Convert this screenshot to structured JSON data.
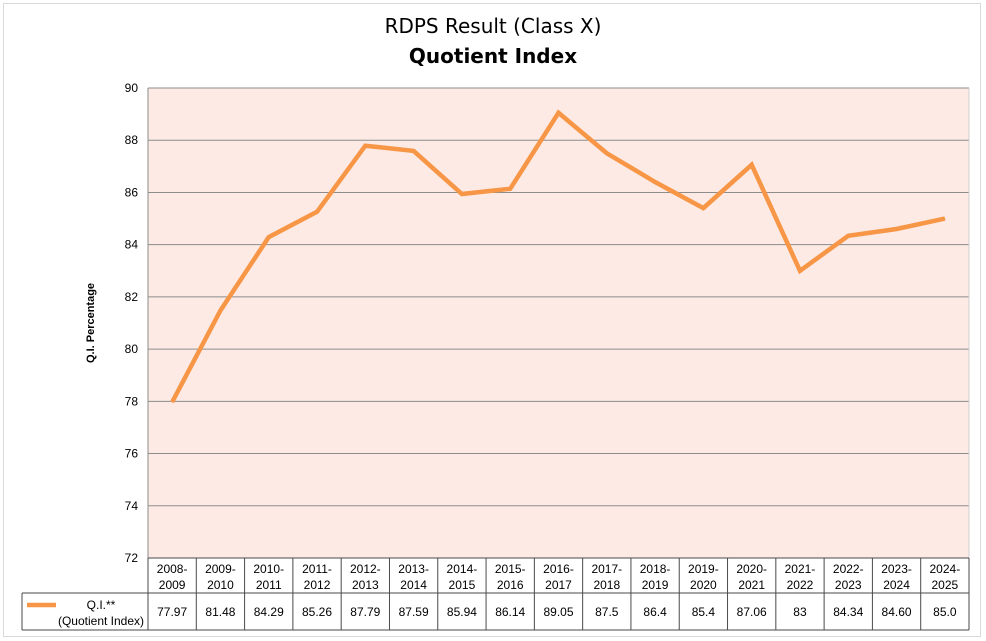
{
  "chart_data": {
    "type": "line",
    "title": "RDPS Result (Class X)",
    "subtitle": "Quotient Index",
    "ylabel": "Q.I. Percentage",
    "ylim": [
      72,
      90
    ],
    "yticks": [
      "72",
      "74",
      "76",
      "78",
      "80",
      "82",
      "84",
      "86",
      "88",
      "90"
    ],
    "categories": [
      [
        "2008-",
        "2009"
      ],
      [
        "2009-",
        "2010"
      ],
      [
        "2010-",
        "2011"
      ],
      [
        "2011-",
        "2012"
      ],
      [
        "2012-",
        "2013"
      ],
      [
        "2013-",
        "2014"
      ],
      [
        "2014-",
        "2015"
      ],
      [
        "2015-",
        "2016"
      ],
      [
        "2016-",
        "2017"
      ],
      [
        "2017-",
        "2018"
      ],
      [
        "2018-",
        "2019"
      ],
      [
        "2019-",
        "2020"
      ],
      [
        "2020-",
        "2021"
      ],
      [
        "2021-",
        "2022"
      ],
      [
        "2022-",
        "2023"
      ],
      [
        "2023-",
        "2024"
      ],
      [
        "2024-",
        "2025"
      ]
    ],
    "series": [
      {
        "name_line1": "Q.I.**",
        "name_line2": "(Quotient Index)",
        "values": [
          77.97,
          81.48,
          84.29,
          85.26,
          87.79,
          87.59,
          85.94,
          86.14,
          89.05,
          87.5,
          86.4,
          85.4,
          87.06,
          83,
          84.34,
          84.6,
          85.0
        ],
        "value_labels": [
          "77.97",
          "81.48",
          "84.29",
          "85.26",
          "87.79",
          "87.59",
          "85.94",
          "86.14",
          "89.05",
          "87.5",
          "86.4",
          "85.4",
          "87.06",
          "83",
          "84.34",
          "84.60",
          "85.0"
        ],
        "color": "#f79646"
      }
    ],
    "plot_background": "#fdeae4",
    "grid": true,
    "legend": "data-table"
  }
}
